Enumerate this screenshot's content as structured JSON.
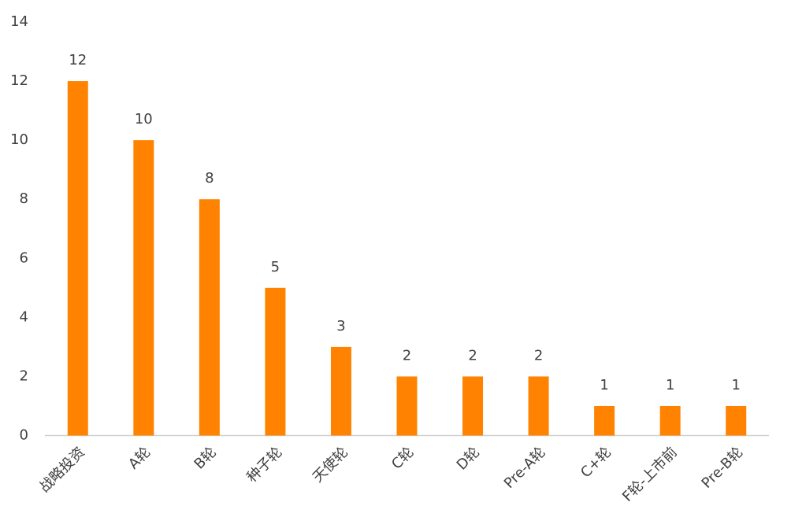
{
  "chart_data": {
    "type": "bar",
    "categories": [
      "战略投资",
      "A轮",
      "B轮",
      "种子轮",
      "天使轮",
      "C轮",
      "D轮",
      "Pre-A轮",
      "C+轮",
      "F轮-上市前",
      "Pre-B轮"
    ],
    "values": [
      12,
      10,
      8,
      5,
      3,
      2,
      2,
      2,
      1,
      1,
      1
    ],
    "color": "#ff8300",
    "ylim": [
      0,
      14
    ],
    "yticks": [
      0,
      2,
      4,
      6,
      8,
      10,
      12,
      14
    ],
    "grid": false,
    "data_labels": true
  }
}
